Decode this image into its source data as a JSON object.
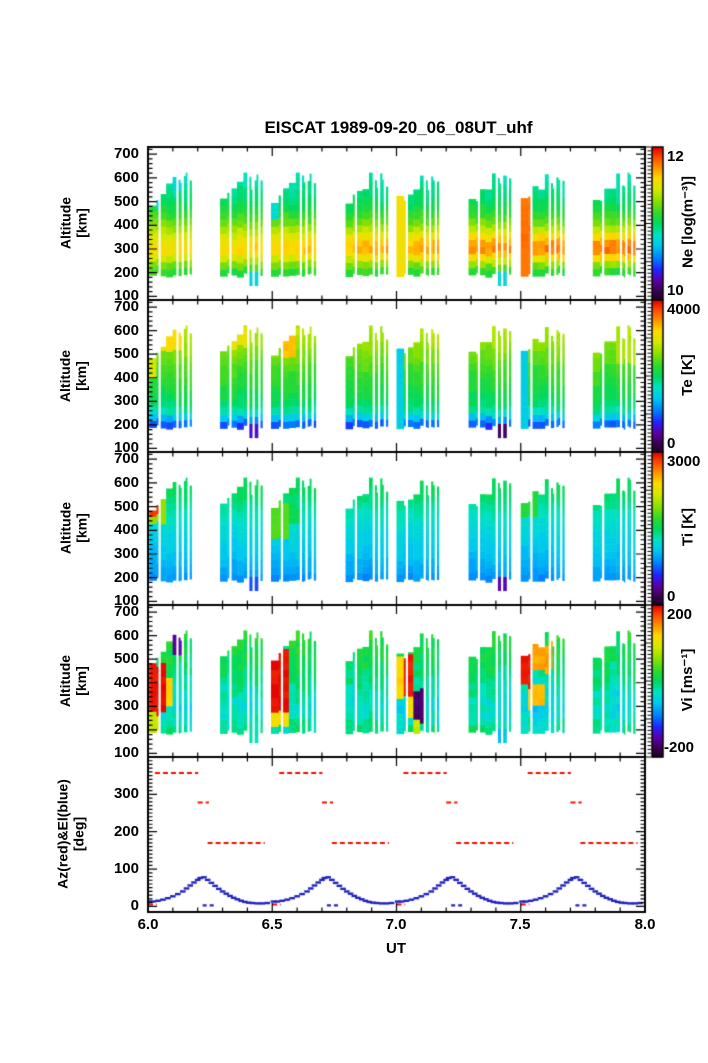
{
  "title": "EISCAT 1989-09-20_06_08UT_uhf",
  "chart_data": {
    "type": "heatmap",
    "title": "EISCAT 1989-09-20_06_08UT_uhf",
    "x_axis": {
      "label": "UT",
      "range": [
        6.0,
        8.0
      ],
      "ticks": [
        "6.0",
        "6.5",
        "7.0",
        "7.5",
        "8.0"
      ],
      "tick_values": [
        6.0,
        6.5,
        7.0,
        7.5,
        8.0
      ],
      "minor_step": 0.1
    },
    "altitude_axis": {
      "label": "Altitude",
      "units": "[km]",
      "ticks": [
        700,
        600,
        500,
        400,
        300,
        200,
        100
      ],
      "range": [
        85,
        730
      ],
      "minor_step": 20
    },
    "angle_axis": {
      "label": "Az(red)&El(blue)",
      "units": "[deg]",
      "ticks": [
        300,
        200,
        100,
        0
      ],
      "range": [
        -15,
        400
      ],
      "minor_step": 10
    },
    "colormap": [
      [
        0.0,
        "#190022"
      ],
      [
        0.07,
        "#40005c"
      ],
      [
        0.13,
        "#5b00a8"
      ],
      [
        0.2,
        "#2222ff"
      ],
      [
        0.28,
        "#0083ff"
      ],
      [
        0.36,
        "#00c9ee"
      ],
      [
        0.43,
        "#00e2c3"
      ],
      [
        0.5,
        "#00d95e"
      ],
      [
        0.57,
        "#2ed92e"
      ],
      [
        0.65,
        "#8ee000"
      ],
      [
        0.73,
        "#d6e900"
      ],
      [
        0.8,
        "#ffd900"
      ],
      [
        0.87,
        "#ff9100"
      ],
      [
        0.94,
        "#ff4500"
      ],
      [
        1.0,
        "#e00000"
      ]
    ],
    "scan_groups": [
      {
        "t0": 6.005,
        "t1": 6.175
      },
      {
        "t0": 6.29,
        "t1": 6.46
      },
      {
        "t0": 6.495,
        "t1": 6.675
      },
      {
        "t0": 6.795,
        "t1": 6.965
      },
      {
        "t0": 7.0,
        "t1": 7.17
      },
      {
        "t0": 7.29,
        "t1": 7.46
      },
      {
        "t0": 7.5,
        "t1": 7.675
      },
      {
        "t0": 7.79,
        "t1": 7.96
      }
    ],
    "column_widths": [
      0.03,
      0.013,
      0.027,
      0.027,
      0.02,
      0.011,
      0.011,
      0.012,
      0.012,
      0.012
    ],
    "column_gap_after": [
      0,
      1,
      0,
      0,
      1,
      0,
      1,
      0,
      1,
      0
    ],
    "column_tops": [
      505,
      520,
      545,
      570,
      612,
      588,
      562,
      600,
      608,
      578
    ],
    "column_bottoms": [
      188,
      196,
      190,
      186,
      194,
      190,
      186,
      192,
      196,
      190
    ],
    "extend_below": [
      [
        6.408,
        6.445
      ],
      [
        7.408,
        7.445
      ]
    ],
    "panels": [
      {
        "name": "Ne",
        "colorbar": {
          "label": "Ne [log(m⁻³)]",
          "max": "12",
          "min": "10"
        },
        "vmin": 10,
        "vmax": 12,
        "noise": 0.07,
        "time_gain": 0.3,
        "profile": [
          [
            150,
            10.85
          ],
          [
            185,
            11.08
          ],
          [
            215,
            11.15
          ],
          [
            245,
            11.3
          ],
          [
            270,
            11.48
          ],
          [
            300,
            11.56
          ],
          [
            340,
            11.5
          ],
          [
            380,
            11.36
          ],
          [
            420,
            11.22
          ],
          [
            460,
            11.1
          ],
          [
            500,
            11.0
          ],
          [
            545,
            10.94
          ],
          [
            590,
            10.9
          ],
          [
            625,
            10.87
          ]
        ],
        "anomalies": [
          [
            7.0,
            7.045,
            180,
            560,
            11.55
          ],
          [
            7.5,
            7.547,
            190,
            600,
            11.8
          ],
          [
            6.408,
            6.445,
            140,
            200,
            10.78
          ],
          [
            7.408,
            7.445,
            140,
            200,
            10.8
          ],
          [
            6.025,
            6.05,
            455,
            520,
            10.78
          ],
          [
            6.09,
            6.14,
            545,
            618,
            10.8
          ],
          [
            6.495,
            6.515,
            440,
            530,
            10.82
          ]
        ]
      },
      {
        "name": "Te",
        "colorbar": {
          "label": "Te [K]",
          "max": "4000",
          "min": "0"
        },
        "vmin": 0,
        "vmax": 4000,
        "noise": 150,
        "time_gain": 0,
        "profile": [
          [
            150,
            700
          ],
          [
            190,
            900
          ],
          [
            215,
            1100
          ],
          [
            245,
            1650
          ],
          [
            280,
            1950
          ],
          [
            330,
            2100
          ],
          [
            390,
            2250
          ],
          [
            450,
            2380
          ],
          [
            510,
            2550
          ],
          [
            560,
            2680
          ],
          [
            605,
            2760
          ],
          [
            625,
            2700
          ]
        ],
        "anomalies": [
          [
            7.0,
            7.032,
            195,
            565,
            1500
          ],
          [
            7.5,
            7.532,
            195,
            565,
            1500
          ],
          [
            6.408,
            6.445,
            140,
            200,
            620
          ],
          [
            7.408,
            7.445,
            140,
            200,
            300
          ],
          [
            6.05,
            6.135,
            515,
            625,
            3150
          ],
          [
            6.3,
            6.4,
            535,
            615,
            3050
          ],
          [
            6.545,
            6.6,
            480,
            585,
            3300
          ],
          [
            7.88,
            7.96,
            470,
            560,
            2750
          ],
          [
            6.0,
            6.02,
            400,
            500,
            2900
          ]
        ]
      },
      {
        "name": "Ti",
        "colorbar": {
          "label": "Ti [K]",
          "max": "3000",
          "min": "0"
        },
        "vmin": 0,
        "vmax": 3000,
        "noise": 80,
        "time_gain": 0,
        "profile": [
          [
            150,
            750
          ],
          [
            190,
            870
          ],
          [
            230,
            960
          ],
          [
            280,
            1040
          ],
          [
            330,
            1100
          ],
          [
            380,
            1160
          ],
          [
            430,
            1240
          ],
          [
            480,
            1330
          ],
          [
            530,
            1450
          ],
          [
            580,
            1520
          ],
          [
            625,
            1490
          ]
        ],
        "anomalies": [
          [
            6.0,
            6.065,
            425,
            560,
            1950
          ],
          [
            6.018,
            6.05,
            458,
            532,
            2880
          ],
          [
            6.495,
            6.56,
            370,
            525,
            1800
          ],
          [
            6.57,
            6.62,
            420,
            505,
            1550
          ],
          [
            6.408,
            6.445,
            140,
            200,
            700
          ],
          [
            7.408,
            7.445,
            140,
            200,
            420
          ],
          [
            7.5,
            7.56,
            460,
            560,
            1650
          ],
          [
            7.33,
            7.38,
            540,
            610,
            1600
          ]
        ]
      },
      {
        "name": "Vi",
        "colorbar": {
          "label": "Vi [ms⁻¹]",
          "max": "200",
          "min": "-200"
        },
        "vmin": -200,
        "vmax": 200,
        "noise": 28,
        "time_gain": 0,
        "profile": [
          [
            150,
            -10
          ],
          [
            200,
            -15
          ],
          [
            250,
            -30
          ],
          [
            300,
            -40
          ],
          [
            350,
            -32
          ],
          [
            400,
            -18
          ],
          [
            450,
            -8
          ],
          [
            500,
            2
          ],
          [
            550,
            10
          ],
          [
            620,
            15
          ]
        ],
        "anomalies": [
          [
            6.0,
            6.077,
            265,
            475,
            195
          ],
          [
            6.0,
            6.055,
            195,
            265,
            90
          ],
          [
            6.077,
            6.1,
            300,
            430,
            120
          ],
          [
            6.1,
            6.137,
            530,
            618,
            -150
          ],
          [
            6.5,
            6.567,
            285,
            532,
            195
          ],
          [
            6.5,
            6.557,
            215,
            285,
            115
          ],
          [
            7.02,
            7.067,
            335,
            525,
            190
          ],
          [
            7.02,
            7.048,
            538,
            605,
            165
          ],
          [
            7.0,
            7.02,
            340,
            500,
            120
          ],
          [
            7.05,
            7.08,
            250,
            335,
            110
          ],
          [
            7.08,
            7.118,
            235,
            365,
            -165
          ],
          [
            7.06,
            7.1,
            195,
            235,
            85
          ],
          [
            7.5,
            7.552,
            385,
            548,
            192
          ],
          [
            7.52,
            7.585,
            295,
            385,
            130
          ],
          [
            7.552,
            7.63,
            448,
            565,
            140
          ],
          [
            6.408,
            6.445,
            140,
            200,
            -25
          ],
          [
            7.408,
            7.445,
            140,
            200,
            -60
          ]
        ]
      }
    ],
    "bottom_panel": {
      "cycles": [
        6.0,
        6.5,
        7.0,
        7.5
      ],
      "azimuth_color": "#ee1100",
      "elevation_color": "#2222bb",
      "azimuth_segments": [
        [
          0.028,
          0.202,
          357
        ],
        [
          0.2,
          0.245,
          278
        ],
        [
          0.24,
          0.47,
          170
        ],
        [
          0.0,
          0.035,
          5
        ]
      ],
      "elevation_steps": [
        [
          0.005,
          13
        ],
        [
          0.02,
          13
        ],
        [
          0.04,
          15
        ],
        [
          0.06,
          18
        ],
        [
          0.08,
          22
        ],
        [
          0.1,
          27
        ],
        [
          0.12,
          33
        ],
        [
          0.14,
          40
        ],
        [
          0.155,
          48
        ],
        [
          0.17,
          56
        ],
        [
          0.185,
          64
        ],
        [
          0.2,
          71
        ],
        [
          0.21,
          76
        ],
        [
          0.225,
          78
        ],
        [
          0.24,
          71
        ],
        [
          0.255,
          63
        ],
        [
          0.27,
          55
        ],
        [
          0.285,
          47
        ],
        [
          0.3,
          40
        ],
        [
          0.315,
          34
        ],
        [
          0.33,
          28
        ],
        [
          0.345,
          23
        ],
        [
          0.36,
          19
        ],
        [
          0.375,
          15
        ],
        [
          0.39,
          12
        ],
        [
          0.405,
          10
        ],
        [
          0.42,
          9
        ],
        [
          0.44,
          8
        ],
        [
          0.46,
          8
        ],
        [
          0.48,
          9
        ]
      ],
      "elevation_zero_marks": [
        [
          0.22,
          0.27
        ]
      ]
    }
  }
}
